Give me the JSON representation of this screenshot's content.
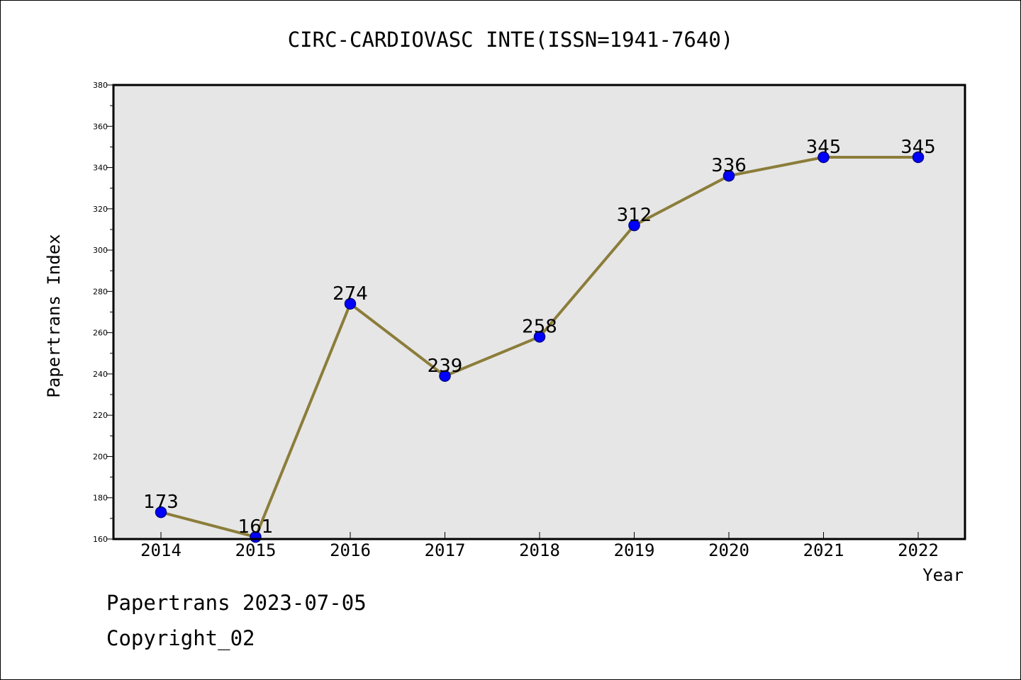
{
  "chart_data": {
    "type": "line",
    "title": "CIRC-CARDIOVASC INTE(ISSN=1941-7640)",
    "xlabel": "Year",
    "ylabel": "Papertrans Index",
    "categories": [
      "2014",
      "2015",
      "2016",
      "2017",
      "2018",
      "2019",
      "2020",
      "2021",
      "2022"
    ],
    "series": [
      {
        "values": [
          173,
          161,
          274,
          239,
          258,
          312,
          336,
          345,
          345
        ]
      }
    ],
    "data_labels": [
      "173",
      "161",
      "274",
      "239",
      "258",
      "312",
      "336",
      "345",
      "345"
    ],
    "ylim": [
      160,
      380
    ],
    "yticks": [
      160,
      180,
      200,
      220,
      240,
      260,
      280,
      300,
      320,
      340,
      360,
      380
    ],
    "grid": false,
    "colors": {
      "line": "#8b7d3a",
      "marker_fill": "#0000ff",
      "marker_edge": "#00008b",
      "plot_background": "#e6e6e6",
      "frame": "#000000"
    }
  },
  "footer": {
    "date_text": "Papertrans 2023-07-05",
    "copyright_text": "Copyright_02"
  }
}
